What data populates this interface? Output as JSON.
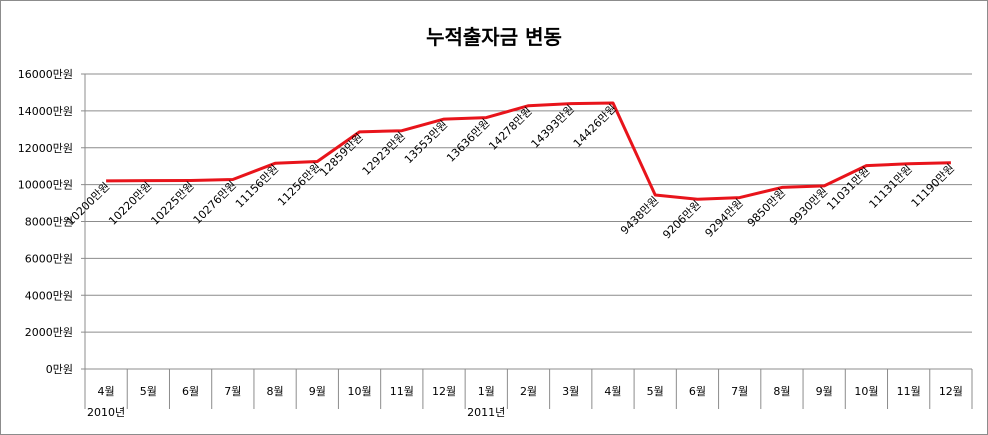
{
  "chart_data": {
    "type": "line",
    "title": "누적출자금 변동",
    "categories": [
      "4월",
      "5월",
      "6월",
      "7월",
      "8월",
      "9월",
      "10월",
      "11월",
      "12월",
      "1월",
      "2월",
      "3월",
      "4월",
      "5월",
      "6월",
      "7월",
      "8월",
      "9월",
      "10월",
      "11월",
      "12월"
    ],
    "year_labels": [
      {
        "text": "2010년",
        "category_index": 0
      },
      {
        "text": "2011년",
        "category_index": 9
      }
    ],
    "series": [
      {
        "values": [
          10200,
          10220,
          10225,
          10276,
          11156,
          11256,
          12859,
          12923,
          13553,
          13636,
          14278,
          14393,
          14426,
          9438,
          9206,
          9294,
          9850,
          9930,
          11031,
          11131,
          11190
        ],
        "color": "#e8141b"
      }
    ],
    "data_labels": [
      "10200만원",
      "10220만원",
      "10225만원",
      "10276만원",
      "11156만원",
      "11256만원",
      "12859만원",
      "12923만원",
      "13553만원",
      "13636만원",
      "14278만원",
      "14393만원",
      "14426만원",
      "9438만원",
      "9206만원",
      "9294만원",
      "9850만원",
      "9930만원",
      "11031만원",
      "11131만원",
      "11190만원"
    ],
    "y_ticks": [
      "0만원",
      "2000만원",
      "4000만원",
      "6000만원",
      "8000만원",
      "10000만원",
      "12000만원",
      "14000만원",
      "16000만원"
    ],
    "ylim": [
      0,
      16000
    ],
    "grid": true,
    "legend": "none"
  }
}
